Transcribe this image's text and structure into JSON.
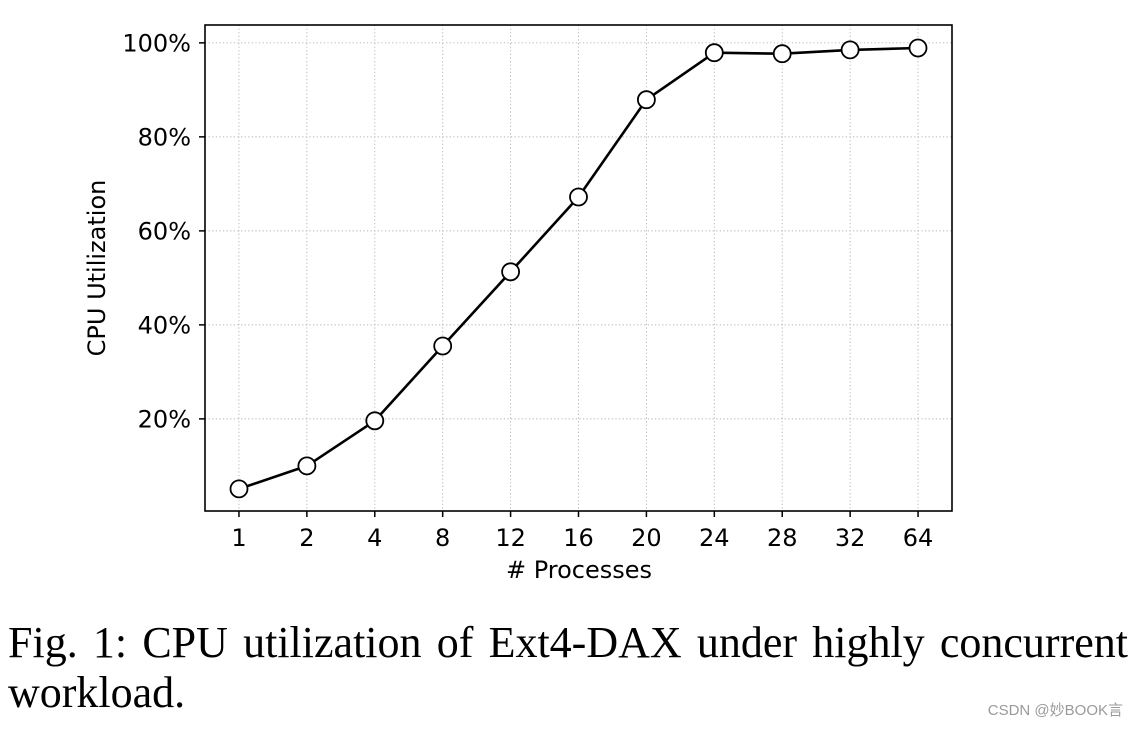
{
  "chart_data": {
    "type": "line",
    "categories": [
      "1",
      "2",
      "4",
      "8",
      "12",
      "16",
      "20",
      "24",
      "28",
      "32",
      "64"
    ],
    "series": [
      {
        "values": [
          5.1,
          10.0,
          19.6,
          35.5,
          51.3,
          67.2,
          87.9,
          97.9,
          97.7,
          98.5,
          98.9
        ],
        "color": "#000000"
      }
    ],
    "xlabel": "# Processes",
    "ylabel": "CPU Utilization",
    "yticks": [
      20,
      40,
      60,
      80,
      100
    ],
    "ytick_labels": [
      "20%",
      "40%",
      "60%",
      "80%",
      "100%"
    ],
    "ylim": [
      0.4,
      103.8
    ],
    "grid": true
  },
  "figure": {
    "caption": "Fig. 1: CPU utilization of Ext4-DAX under highly concurrent workload."
  },
  "watermark": "CSDN @妙BOOK言"
}
